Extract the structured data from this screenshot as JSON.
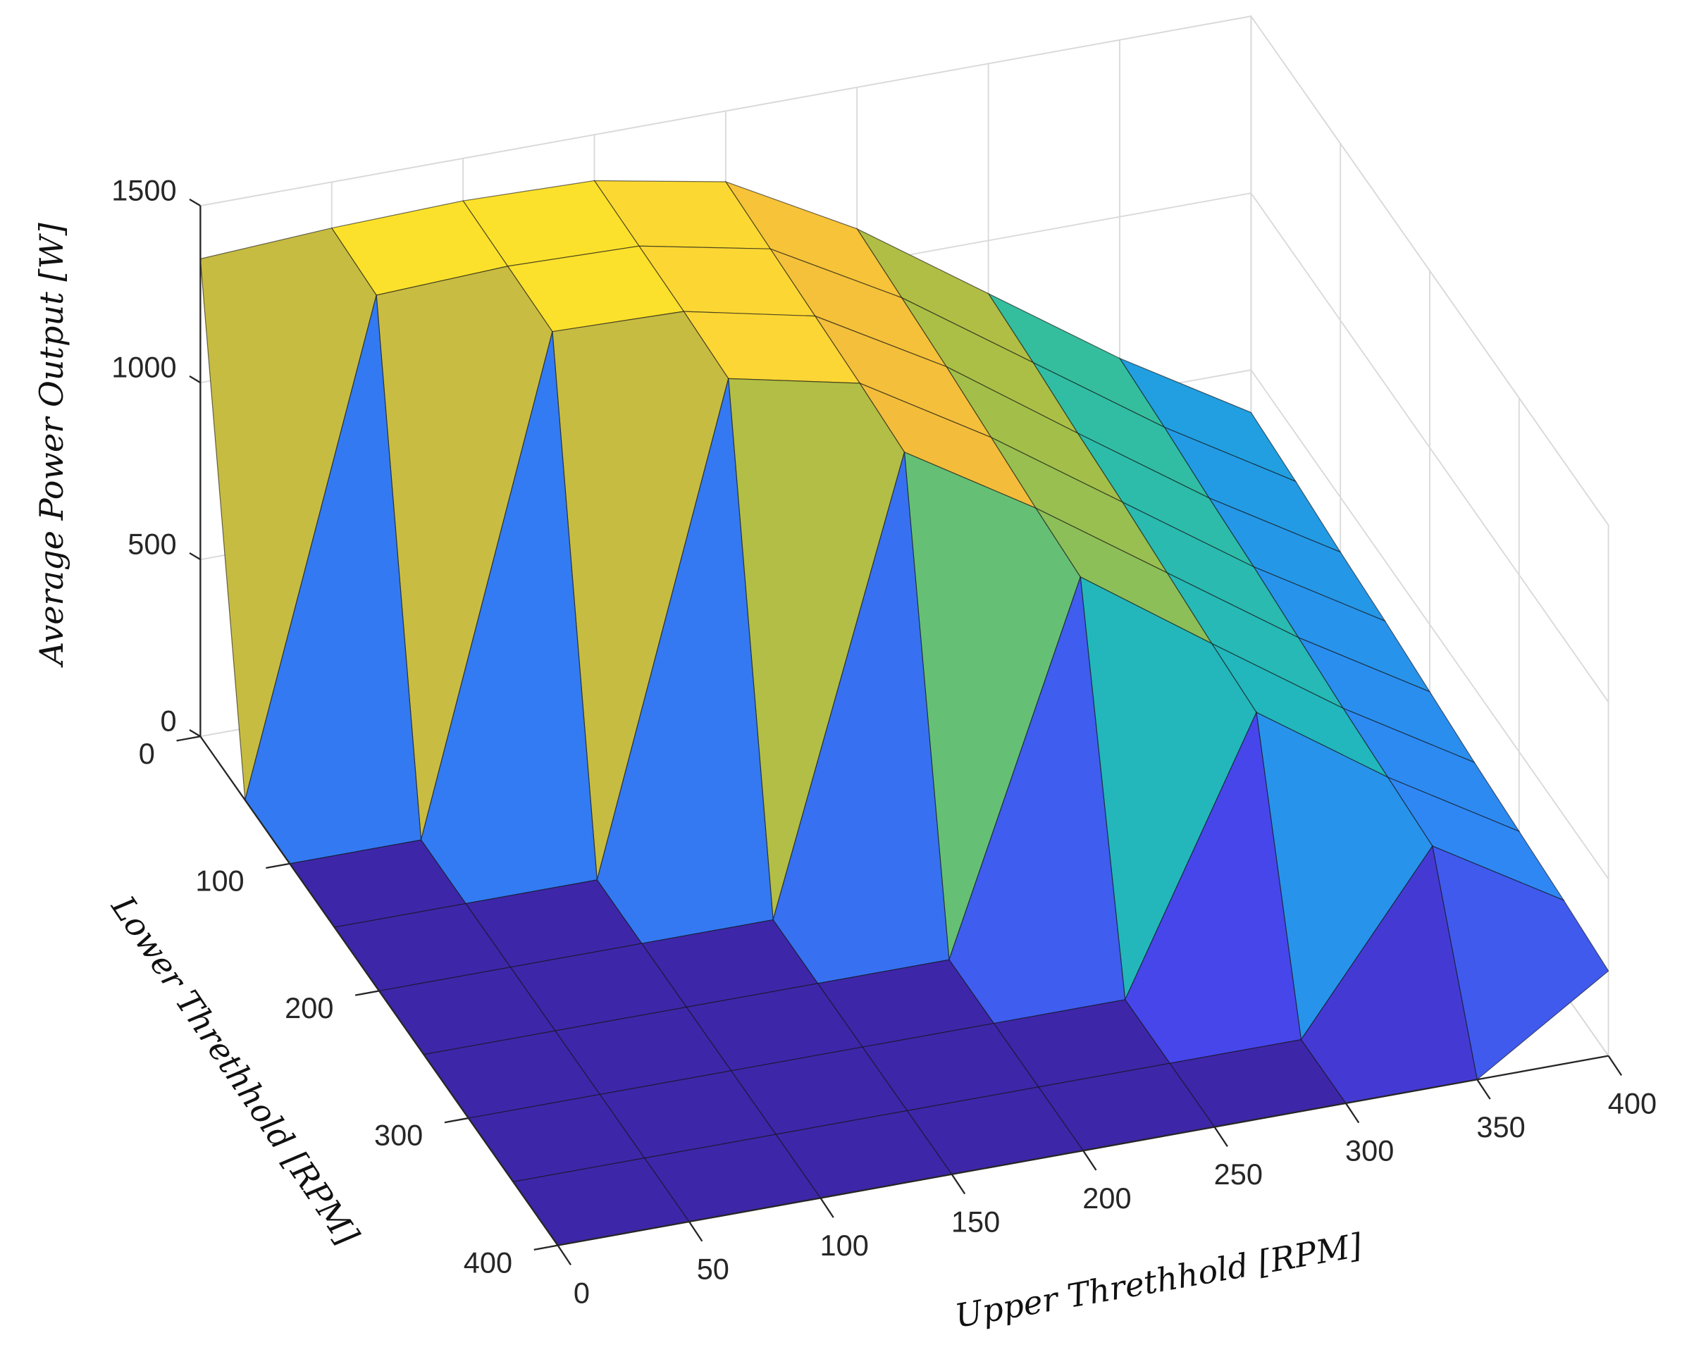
{
  "chart_data": {
    "type": "surface",
    "zlabel": "Average Power Output [W]",
    "ylabel": "Lower Threthhold [RPM]",
    "xlabel": "Upper Threthhold [RPM]",
    "x": [
      0,
      50,
      100,
      150,
      200,
      250,
      300,
      350,
      400
    ],
    "y": [
      0,
      50,
      100,
      150,
      200,
      250,
      300,
      350,
      400
    ],
    "z": [
      [
        1350,
        1370,
        1380,
        1370,
        1300,
        1100,
        850,
        600,
        380
      ],
      [
        0,
        1360,
        1375,
        1365,
        1290,
        1085,
        835,
        585,
        365
      ],
      [
        0,
        0,
        1370,
        1360,
        1280,
        1070,
        815,
        565,
        345
      ],
      [
        0,
        0,
        0,
        1350,
        1270,
        1050,
        800,
        550,
        330
      ],
      [
        0,
        0,
        0,
        0,
        1255,
        1030,
        780,
        530,
        310
      ],
      [
        0,
        0,
        0,
        0,
        0,
        1015,
        760,
        510,
        290
      ],
      [
        0,
        0,
        0,
        0,
        0,
        0,
        745,
        495,
        275
      ],
      [
        0,
        0,
        0,
        0,
        0,
        0,
        0,
        480,
        260
      ],
      [
        0,
        0,
        0,
        0,
        0,
        0,
        0,
        0,
        240
      ]
    ],
    "xlim": [
      0,
      400
    ],
    "ylim": [
      0,
      400
    ],
    "zlim": [
      0,
      1500
    ],
    "xticks": [
      0,
      50,
      100,
      150,
      200,
      250,
      300,
      350,
      400
    ],
    "yticks": [
      0,
      100,
      200,
      300,
      400
    ],
    "zticks": [
      0,
      500,
      1000,
      1500
    ],
    "colormap": [
      "#3e26a8",
      "#4746eb",
      "#2f86f4",
      "#16b2d2",
      "#3ac193",
      "#a5bf47",
      "#f2b93c",
      "#fcd535",
      "#f9fb15"
    ],
    "grid": true
  }
}
